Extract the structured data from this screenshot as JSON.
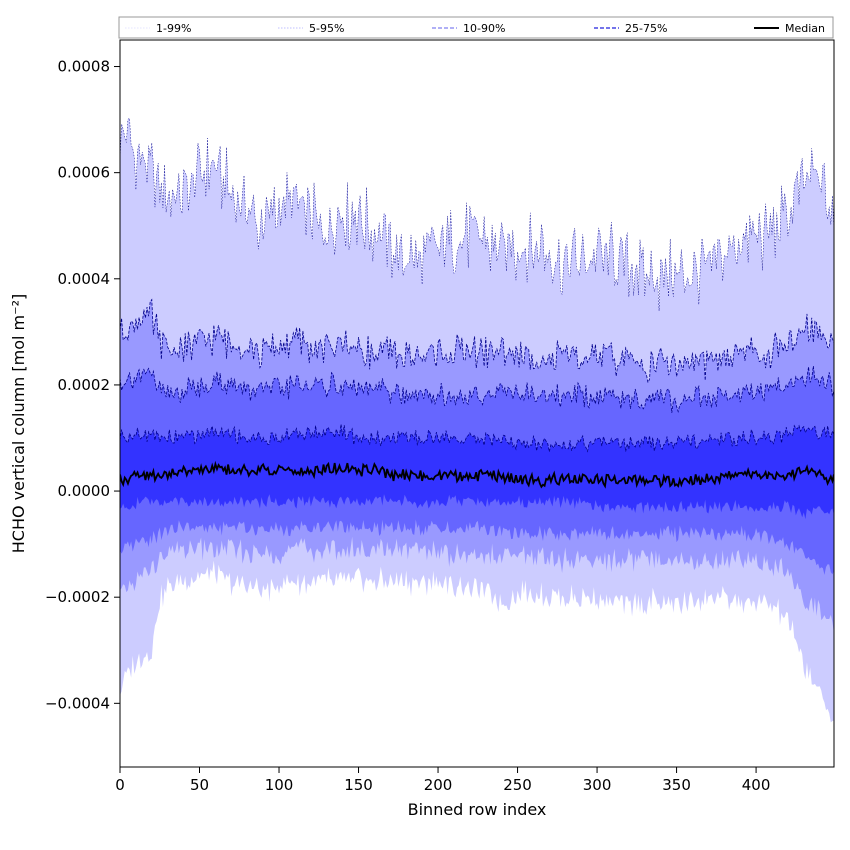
{
  "chart_data": {
    "type": "area",
    "xlabel": "Binned row index",
    "ylabel": "HCHO vertical column [mol m⁻²]",
    "xlim": [
      0,
      449
    ],
    "ylim": [
      -0.00052,
      0.00085
    ],
    "xticks": [
      0,
      50,
      100,
      150,
      200,
      250,
      300,
      350,
      400
    ],
    "xtick_labels": [
      "0",
      "50",
      "100",
      "150",
      "200",
      "250",
      "300",
      "350",
      "400"
    ],
    "yticks": [
      -0.0004,
      -0.0002,
      0.0,
      0.0002,
      0.0004,
      0.0006,
      0.0008
    ],
    "ytick_labels": [
      "−0.0004",
      "−0.0002",
      "0.0000",
      "0.0002",
      "0.0004",
      "0.0006",
      "0.0008"
    ],
    "legend_position": "top, full width above plot",
    "grid": false,
    "legend": [
      {
        "label": "1-99%",
        "color": "#ccccff",
        "style": "dotted",
        "width": 0.6
      },
      {
        "label": "5-95%",
        "color": "#8080ff",
        "style": "dotted",
        "width": 0.6
      },
      {
        "label": "10-90%",
        "color": "#6060ee",
        "style": "dashed",
        "width": 1.0
      },
      {
        "label": "25-75%",
        "color": "#2222dd",
        "style": "dashed",
        "width": 1.2
      },
      {
        "label": "Median",
        "color": "#000000",
        "style": "solid",
        "width": 2.0
      }
    ],
    "x": [
      0,
      10,
      20,
      25,
      30,
      40,
      50,
      60,
      70,
      80,
      90,
      100,
      110,
      120,
      130,
      140,
      150,
      160,
      170,
      180,
      190,
      200,
      210,
      220,
      230,
      240,
      250,
      260,
      270,
      280,
      290,
      300,
      310,
      320,
      330,
      340,
      350,
      360,
      370,
      380,
      390,
      400,
      410,
      420,
      430,
      440,
      449
    ],
    "series": [
      {
        "name": "1-99%",
        "upper": [
          0.00068,
          0.00064,
          0.0006,
          0.00055,
          0.00055,
          0.00057,
          0.0006,
          0.00061,
          0.00056,
          0.00053,
          0.0005,
          0.00053,
          0.00055,
          0.00051,
          0.0005,
          0.00052,
          0.00052,
          0.00049,
          0.00046,
          0.00044,
          0.00044,
          0.00046,
          0.00047,
          0.00048,
          0.00047,
          0.00046,
          0.00045,
          0.00047,
          0.00045,
          0.00043,
          0.00043,
          0.00044,
          0.00044,
          0.00042,
          0.00041,
          0.0004,
          0.00041,
          0.00041,
          0.00043,
          0.00045,
          0.00047,
          0.00048,
          0.00049,
          0.00052,
          0.00058,
          0.00059,
          0.0005
        ],
        "lower": [
          -0.00037,
          -0.00032,
          -0.0003,
          -0.0002,
          -0.00018,
          -0.00017,
          -0.00016,
          -0.00016,
          -0.00017,
          -0.00018,
          -0.00019,
          -0.00018,
          -0.00017,
          -0.00017,
          -0.00017,
          -0.00017,
          -0.00017,
          -0.00017,
          -0.00017,
          -0.00017,
          -0.00017,
          -0.00017,
          -0.00018,
          -0.00018,
          -0.00019,
          -0.00021,
          -0.00019,
          -0.00019,
          -0.0002,
          -0.0002,
          -0.0002,
          -0.0002,
          -0.00021,
          -0.00021,
          -0.00021,
          -0.00021,
          -0.00021,
          -0.00021,
          -0.0002,
          -0.0002,
          -0.00021,
          -0.00021,
          -0.00022,
          -0.00024,
          -0.00033,
          -0.00038,
          -0.00043
        ]
      },
      {
        "name": "5-95%",
        "upper": [
          0.0003,
          0.00032,
          0.00033,
          0.00028,
          0.00027,
          0.00027,
          0.00028,
          0.00029,
          0.00028,
          0.00027,
          0.00026,
          0.00027,
          0.00028,
          0.00027,
          0.00027,
          0.00028,
          0.00027,
          0.00026,
          0.00026,
          0.00025,
          0.00025,
          0.00026,
          0.00026,
          0.00026,
          0.00026,
          0.00027,
          0.00025,
          0.00025,
          0.00025,
          0.00025,
          0.00025,
          0.00025,
          0.00025,
          0.00024,
          0.00024,
          0.00024,
          0.00024,
          0.00024,
          0.00024,
          0.00025,
          0.00026,
          0.00026,
          0.00026,
          0.00027,
          0.00031,
          0.0003,
          0.00028
        ],
        "lower": [
          -0.0002,
          -0.00017,
          -0.00015,
          -0.00013,
          -0.00012,
          -0.00011,
          -0.00011,
          -0.00011,
          -0.00011,
          -0.00012,
          -0.00012,
          -0.00012,
          -0.00011,
          -0.00011,
          -0.00011,
          -0.00011,
          -0.00011,
          -0.00011,
          -0.00011,
          -0.00011,
          -0.00011,
          -0.00011,
          -0.00012,
          -0.00012,
          -0.00012,
          -0.00013,
          -0.00012,
          -0.00012,
          -0.00013,
          -0.00013,
          -0.00013,
          -0.00013,
          -0.00013,
          -0.00013,
          -0.00013,
          -0.00013,
          -0.00013,
          -0.00013,
          -0.00013,
          -0.00013,
          -0.00013,
          -0.00013,
          -0.00014,
          -0.00015,
          -0.0002,
          -0.00023,
          -0.00025
        ]
      },
      {
        "name": "10-90%",
        "upper": [
          0.0002,
          0.00022,
          0.00022,
          0.00019,
          0.00018,
          0.00019,
          0.0002,
          0.00021,
          0.0002,
          0.00019,
          0.00019,
          0.00019,
          0.0002,
          0.0002,
          0.0002,
          0.0002,
          0.00019,
          0.00019,
          0.00019,
          0.00018,
          0.00018,
          0.00018,
          0.00018,
          0.00018,
          0.00018,
          0.00019,
          0.00018,
          0.00018,
          0.00018,
          0.00018,
          0.00018,
          0.00018,
          0.00018,
          0.00017,
          0.00017,
          0.00017,
          0.00017,
          0.00017,
          0.00018,
          0.00018,
          0.00018,
          0.00019,
          0.00019,
          0.0002,
          0.00022,
          0.00021,
          0.0002
        ],
        "lower": [
          -0.00012,
          -0.0001,
          -9e-05,
          -8e-05,
          -7e-05,
          -7e-05,
          -7e-05,
          -7e-05,
          -7e-05,
          -7e-05,
          -7e-05,
          -7e-05,
          -7e-05,
          -7e-05,
          -7e-05,
          -7e-05,
          -7e-05,
          -7e-05,
          -7e-05,
          -7e-05,
          -7e-05,
          -7e-05,
          -7e-05,
          -7e-05,
          -7e-05,
          -8e-05,
          -8e-05,
          -8e-05,
          -8e-05,
          -8e-05,
          -8e-05,
          -8e-05,
          -8e-05,
          -8e-05,
          -8e-05,
          -8e-05,
          -8e-05,
          -8e-05,
          -8e-05,
          -8e-05,
          -8e-05,
          -8e-05,
          -9e-05,
          -0.0001,
          -0.00012,
          -0.00014,
          -0.00015
        ]
      },
      {
        "name": "25-75%",
        "upper": [
          0.0001,
          0.00011,
          0.00011,
          0.0001,
          0.0001,
          0.0001,
          0.00011,
          0.00011,
          0.00011,
          0.0001,
          0.0001,
          0.0001,
          0.00011,
          0.00011,
          0.00011,
          0.00011,
          0.0001,
          0.0001,
          0.0001,
          0.0001,
          0.0001,
          0.0001,
          0.0001,
          0.0001,
          0.0001,
          0.0001,
          9e-05,
          9e-05,
          9e-05,
          9e-05,
          9e-05,
          9e-05,
          9e-05,
          9e-05,
          9e-05,
          9e-05,
          9e-05,
          9e-05,
          9e-05,
          0.0001,
          0.0001,
          0.0001,
          0.0001,
          0.00011,
          0.00012,
          0.00011,
          0.00011
        ],
        "lower": [
          -3e-05,
          -2e-05,
          -2e-05,
          -2e-05,
          -2e-05,
          -2e-05,
          -2e-05,
          -2e-05,
          -2e-05,
          -2e-05,
          -2e-05,
          -2e-05,
          -2e-05,
          -2e-05,
          -2e-05,
          -2e-05,
          -2e-05,
          -2e-05,
          -2e-05,
          -2e-05,
          -2e-05,
          -2e-05,
          -2e-05,
          -2e-05,
          -2e-05,
          -2e-05,
          -2e-05,
          -2e-05,
          -2e-05,
          -2e-05,
          -2e-05,
          -3e-05,
          -3e-05,
          -3e-05,
          -3e-05,
          -3e-05,
          -3e-05,
          -3e-05,
          -3e-05,
          -3e-05,
          -3e-05,
          -3e-05,
          -3e-05,
          -3e-05,
          -4e-05,
          -4e-05,
          -4e-05
        ]
      },
      {
        "name": "Median",
        "values": [
          2e-05,
          3e-05,
          3e-05,
          3e-05,
          3e-05,
          4e-05,
          4e-05,
          4e-05,
          4e-05,
          4e-05,
          4e-05,
          4e-05,
          4e-05,
          4e-05,
          4e-05,
          4e-05,
          4e-05,
          4e-05,
          3e-05,
          3e-05,
          3e-05,
          3e-05,
          3e-05,
          3e-05,
          3e-05,
          3e-05,
          2e-05,
          2e-05,
          2e-05,
          2e-05,
          2e-05,
          2e-05,
          2e-05,
          2e-05,
          2e-05,
          2e-05,
          2e-05,
          2e-05,
          2e-05,
          3e-05,
          3e-05,
          3e-05,
          3e-05,
          3e-05,
          4e-05,
          3e-05,
          2e-05
        ]
      }
    ],
    "colors": {
      "band_1_99": "#ccccff",
      "band_5_95": "#9999ff",
      "band_10_90": "#6666ff",
      "band_25_75": "#3333ff",
      "median": "#000000",
      "edge": "#00008b"
    }
  }
}
